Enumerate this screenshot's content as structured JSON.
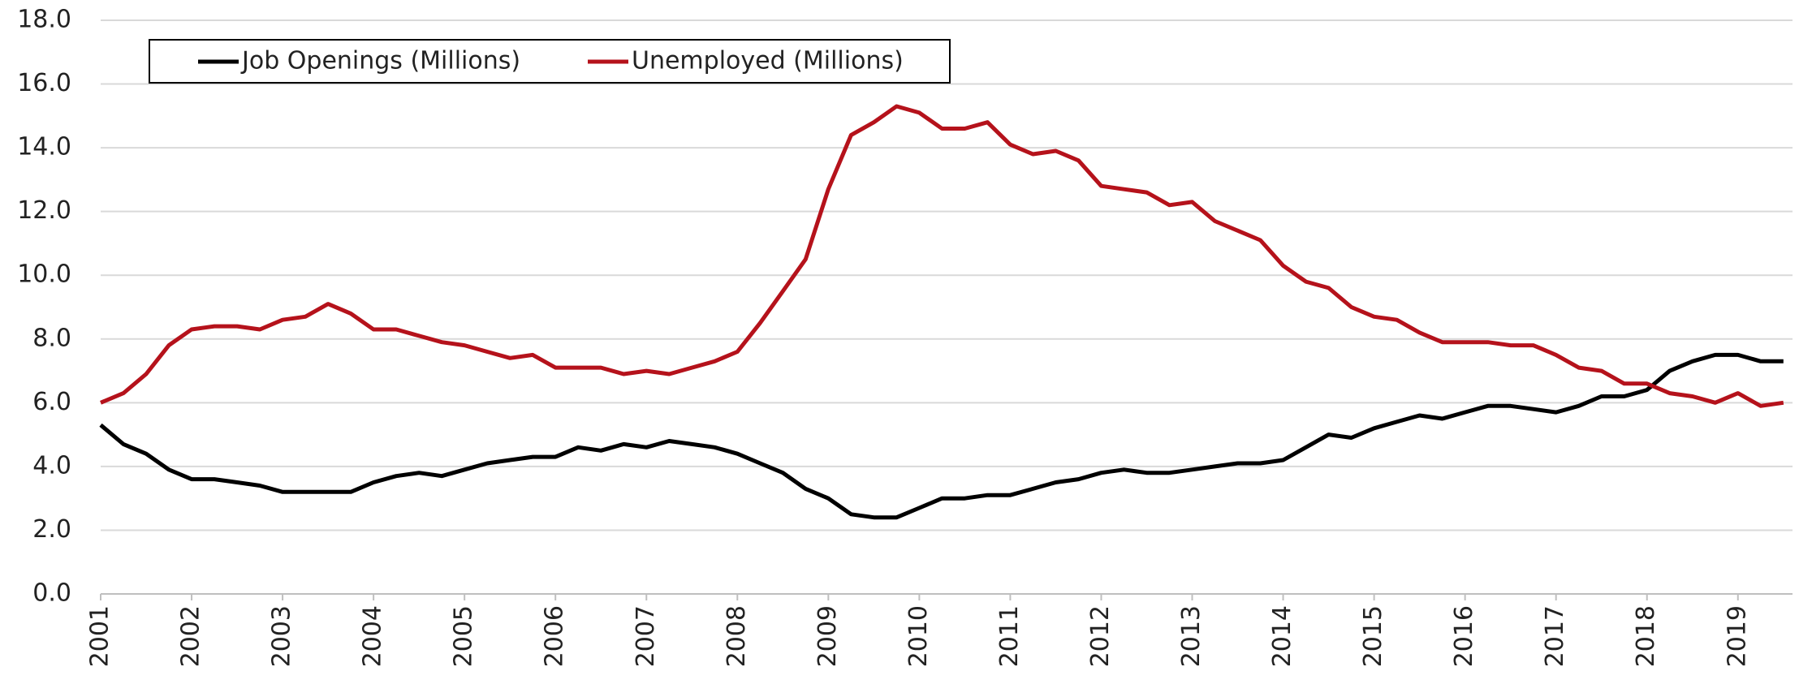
{
  "chart_data": {
    "type": "line",
    "x": [
      2001,
      2001.25,
      2001.5,
      2001.75,
      2002,
      2002.25,
      2002.5,
      2002.75,
      2003,
      2003.25,
      2003.5,
      2003.75,
      2004,
      2004.25,
      2004.5,
      2004.75,
      2005,
      2005.25,
      2005.5,
      2005.75,
      2006,
      2006.25,
      2006.5,
      2006.75,
      2007,
      2007.25,
      2007.5,
      2007.75,
      2008,
      2008.25,
      2008.5,
      2008.75,
      2009,
      2009.25,
      2009.5,
      2009.75,
      2010,
      2010.25,
      2010.5,
      2010.75,
      2011,
      2011.25,
      2011.5,
      2011.75,
      2012,
      2012.25,
      2012.5,
      2012.75,
      2013,
      2013.25,
      2013.5,
      2013.75,
      2014,
      2014.25,
      2014.5,
      2014.75,
      2015,
      2015.25,
      2015.5,
      2015.75,
      2016,
      2016.25,
      2016.5,
      2016.75,
      2017,
      2017.25,
      2017.5,
      2017.75,
      2018,
      2018.25,
      2018.5,
      2018.75,
      2019,
      2019.25,
      2019.5
    ],
    "series": [
      {
        "name": "Job Openings (Millions)",
        "color": "#000000",
        "values": [
          5.3,
          4.7,
          4.4,
          3.9,
          3.6,
          3.6,
          3.5,
          3.4,
          3.2,
          3.2,
          3.2,
          3.2,
          3.5,
          3.7,
          3.8,
          3.7,
          3.9,
          4.1,
          4.2,
          4.3,
          4.3,
          4.6,
          4.5,
          4.7,
          4.6,
          4.8,
          4.7,
          4.6,
          4.4,
          4.1,
          3.8,
          3.3,
          3.0,
          2.5,
          2.4,
          2.4,
          2.7,
          3.0,
          3.0,
          3.1,
          3.1,
          3.3,
          3.5,
          3.6,
          3.8,
          3.9,
          3.8,
          3.8,
          3.9,
          4.0,
          4.1,
          4.1,
          4.2,
          4.6,
          5.0,
          4.9,
          5.2,
          5.4,
          5.6,
          5.5,
          5.7,
          5.9,
          5.9,
          5.8,
          5.7,
          5.9,
          6.2,
          6.2,
          6.4,
          7.0,
          7.3,
          7.5,
          7.5,
          7.3,
          7.3
        ]
      },
      {
        "name": "Unemployed (Millions)",
        "color": "#b5121b",
        "values": [
          6.0,
          6.3,
          6.9,
          7.8,
          8.3,
          8.4,
          8.4,
          8.3,
          8.6,
          8.7,
          9.1,
          8.8,
          8.3,
          8.3,
          8.1,
          7.9,
          7.8,
          7.6,
          7.4,
          7.5,
          7.1,
          7.1,
          7.1,
          6.9,
          7.0,
          6.9,
          7.1,
          7.3,
          7.6,
          8.5,
          9.5,
          10.5,
          12.7,
          14.4,
          14.8,
          15.3,
          15.1,
          14.6,
          14.6,
          14.8,
          14.1,
          13.8,
          13.9,
          13.6,
          12.8,
          12.7,
          12.6,
          12.2,
          12.3,
          11.7,
          11.4,
          11.1,
          10.3,
          9.8,
          9.6,
          9.0,
          8.7,
          8.6,
          8.2,
          7.9,
          7.9,
          7.9,
          7.8,
          7.8,
          7.5,
          7.1,
          7.0,
          6.6,
          6.6,
          6.3,
          6.2,
          6.0,
          6.3,
          5.9,
          6.0
        ]
      }
    ],
    "xlim": [
      2001,
      2019.6
    ],
    "xticks": [
      2001,
      2002,
      2003,
      2004,
      2005,
      2006,
      2007,
      2008,
      2009,
      2010,
      2011,
      2012,
      2013,
      2014,
      2015,
      2016,
      2017,
      2018,
      2019
    ],
    "ylim": [
      0,
      18
    ],
    "yticks": [
      {
        "value": 0,
        "label": "0.0"
      },
      {
        "value": 2,
        "label": "2.0"
      },
      {
        "value": 4,
        "label": "4.0"
      },
      {
        "value": 6,
        "label": "6.0"
      },
      {
        "value": 8,
        "label": "8.0"
      },
      {
        "value": 10,
        "label": "10.0"
      },
      {
        "value": 12,
        "label": "12.0"
      },
      {
        "value": 14,
        "label": "14.0"
      },
      {
        "value": 16,
        "label": "16.0"
      },
      {
        "value": 18,
        "label": "18.0"
      }
    ],
    "grid": true,
    "legend": "upper left"
  }
}
